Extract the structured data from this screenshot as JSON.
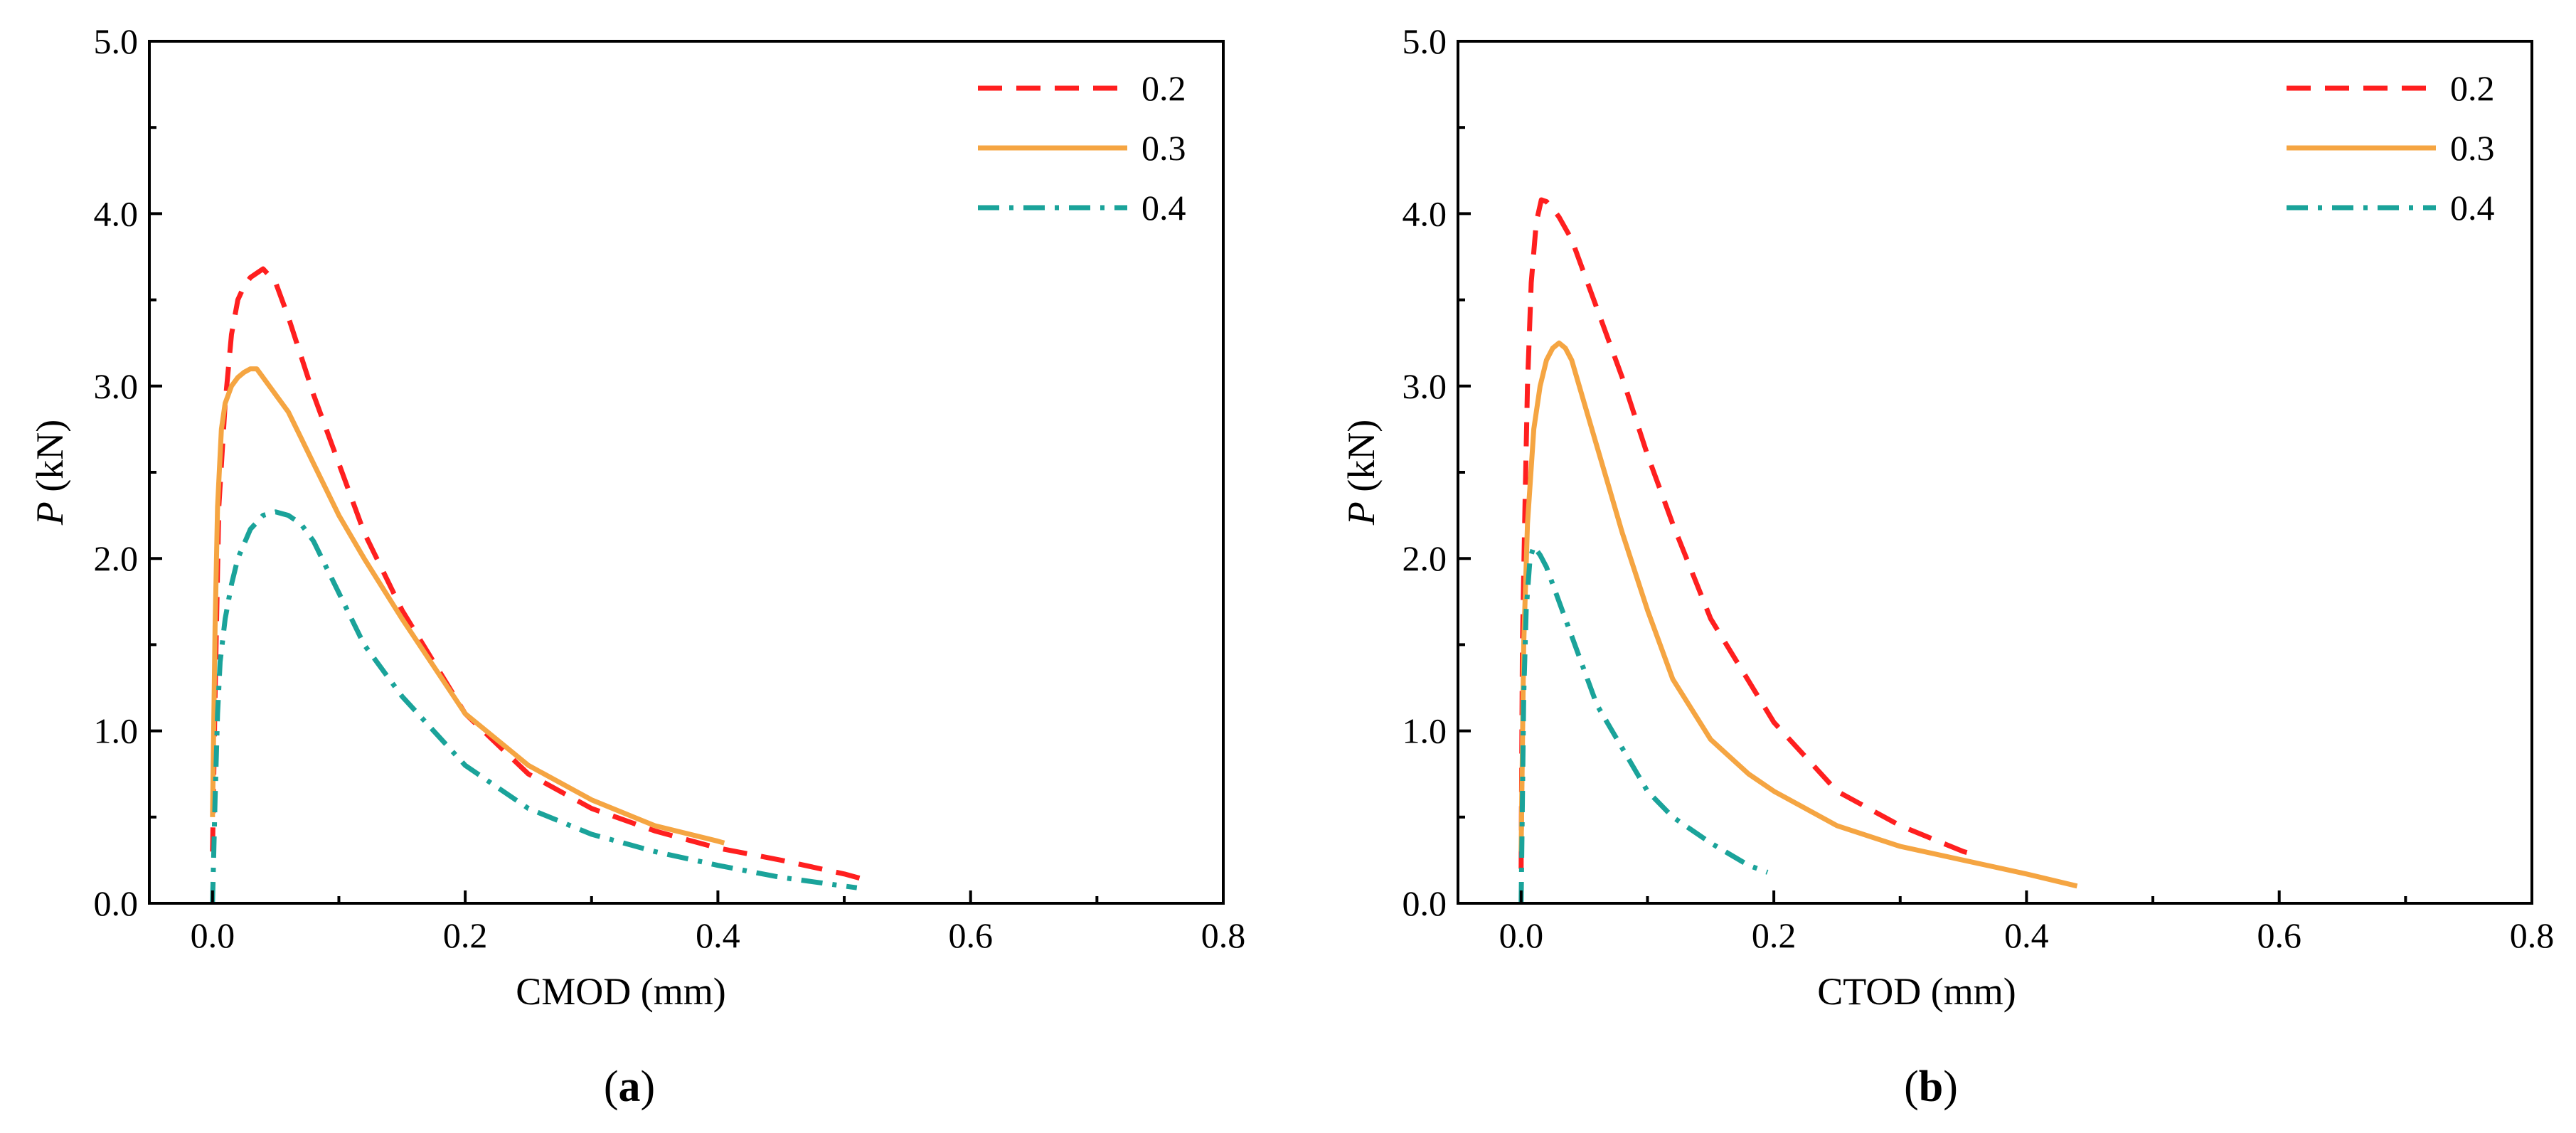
{
  "chart_data": [
    {
      "type": "line",
      "panel_label": "a",
      "xlabel": "CMOD (mm)",
      "ylabel": {
        "italic": "P",
        "rest": " (kN)"
      },
      "xlim": [
        -0.05,
        0.8
      ],
      "ylim": [
        0,
        5
      ],
      "xticks": [
        0.0,
        0.2,
        0.4,
        0.6,
        0.8
      ],
      "xtick_labels": [
        "0.0",
        "0.2",
        "0.4",
        "0.6",
        "0.8"
      ],
      "yticks": [
        0,
        1,
        2,
        3,
        4,
        5
      ],
      "ytick_labels": [
        "0.0",
        "1.0",
        "2.0",
        "3.0",
        "4.0",
        "5.0"
      ],
      "grid": false,
      "legend_position": "top-right",
      "series": [
        {
          "name": "0.2",
          "color": "#ff1f1f",
          "dash": "dashed",
          "x": [
            0.0,
            0.002,
            0.005,
            0.01,
            0.015,
            0.02,
            0.025,
            0.03,
            0.04,
            0.05,
            0.06,
            0.08,
            0.1,
            0.12,
            0.15,
            0.2,
            0.25,
            0.3,
            0.35,
            0.4,
            0.45,
            0.5,
            0.52
          ],
          "y": [
            0.3,
            1.2,
            2.3,
            2.9,
            3.3,
            3.5,
            3.58,
            3.63,
            3.68,
            3.6,
            3.4,
            2.95,
            2.55,
            2.15,
            1.7,
            1.1,
            0.75,
            0.55,
            0.42,
            0.32,
            0.25,
            0.17,
            0.13
          ]
        },
        {
          "name": "0.3",
          "color": "#f5a542",
          "dash": "solid",
          "x": [
            0.0,
            0.002,
            0.004,
            0.007,
            0.01,
            0.015,
            0.02,
            0.025,
            0.03,
            0.035,
            0.04,
            0.05,
            0.06,
            0.07,
            0.08,
            0.1,
            0.12,
            0.15,
            0.2,
            0.25,
            0.3,
            0.35,
            0.4,
            0.405
          ],
          "y": [
            0.5,
            1.6,
            2.3,
            2.75,
            2.9,
            3.0,
            3.05,
            3.08,
            3.1,
            3.1,
            3.05,
            2.95,
            2.85,
            2.7,
            2.55,
            2.25,
            2.0,
            1.65,
            1.1,
            0.8,
            0.6,
            0.45,
            0.36,
            0.35
          ]
        },
        {
          "name": "0.4",
          "color": "#1aa39a",
          "dash": "dashdot",
          "x": [
            0.0,
            0.002,
            0.004,
            0.006,
            0.01,
            0.015,
            0.02,
            0.03,
            0.04,
            0.05,
            0.06,
            0.07,
            0.08,
            0.1,
            0.12,
            0.15,
            0.2,
            0.25,
            0.3,
            0.35,
            0.4,
            0.45,
            0.5,
            0.51
          ],
          "y": [
            0.0,
            0.6,
            1.1,
            1.4,
            1.65,
            1.85,
            2.0,
            2.17,
            2.25,
            2.27,
            2.25,
            2.2,
            2.1,
            1.8,
            1.5,
            1.2,
            0.8,
            0.55,
            0.4,
            0.3,
            0.22,
            0.15,
            0.1,
            0.09
          ]
        }
      ]
    },
    {
      "type": "line",
      "panel_label": "b",
      "xlabel": "CTOD (mm)",
      "ylabel": {
        "italic": "P",
        "rest": " (kN)"
      },
      "xlim": [
        -0.05,
        0.8
      ],
      "ylim": [
        0,
        5
      ],
      "xticks": [
        0.0,
        0.2,
        0.4,
        0.6,
        0.8
      ],
      "xtick_labels": [
        "0.0",
        "0.2",
        "0.4",
        "0.6",
        "0.8"
      ],
      "yticks": [
        0,
        1,
        2,
        3,
        4,
        5
      ],
      "ytick_labels": [
        "0.0",
        "1.0",
        "2.0",
        "3.0",
        "4.0",
        "5.0"
      ],
      "grid": false,
      "legend_position": "top-right",
      "series": [
        {
          "name": "0.2",
          "color": "#ff1f1f",
          "dash": "dashed",
          "x": [
            0.0,
            0.001,
            0.003,
            0.005,
            0.008,
            0.012,
            0.016,
            0.02,
            0.025,
            0.03,
            0.04,
            0.05,
            0.06,
            0.08,
            0.1,
            0.12,
            0.15,
            0.2,
            0.25,
            0.3,
            0.35,
            0.36
          ],
          "y": [
            0.2,
            1.5,
            2.3,
            3.0,
            3.6,
            3.95,
            4.08,
            4.07,
            4.03,
            3.98,
            3.85,
            3.65,
            3.45,
            3.05,
            2.6,
            2.2,
            1.65,
            1.05,
            0.65,
            0.45,
            0.3,
            0.28
          ]
        },
        {
          "name": "0.3",
          "color": "#f5a542",
          "dash": "solid",
          "x": [
            0.0,
            0.002,
            0.005,
            0.01,
            0.015,
            0.02,
            0.025,
            0.03,
            0.035,
            0.04,
            0.05,
            0.06,
            0.07,
            0.08,
            0.1,
            0.12,
            0.15,
            0.18,
            0.2,
            0.25,
            0.3,
            0.35,
            0.4,
            0.44
          ],
          "y": [
            0.3,
            1.5,
            2.2,
            2.75,
            3.0,
            3.15,
            3.22,
            3.25,
            3.22,
            3.15,
            2.9,
            2.65,
            2.4,
            2.15,
            1.7,
            1.3,
            0.95,
            0.75,
            0.65,
            0.45,
            0.33,
            0.25,
            0.17,
            0.1
          ]
        },
        {
          "name": "0.4",
          "color": "#1aa39a",
          "dash": "dashdot",
          "x": [
            0.0,
            0.002,
            0.004,
            0.007,
            0.01,
            0.015,
            0.02,
            0.03,
            0.04,
            0.05,
            0.06,
            0.08,
            0.1,
            0.12,
            0.15,
            0.18,
            0.195
          ],
          "y": [
            0.0,
            1.2,
            1.7,
            2.0,
            2.07,
            2.02,
            1.95,
            1.75,
            1.55,
            1.35,
            1.15,
            0.9,
            0.65,
            0.5,
            0.35,
            0.22,
            0.18
          ]
        }
      ]
    }
  ]
}
